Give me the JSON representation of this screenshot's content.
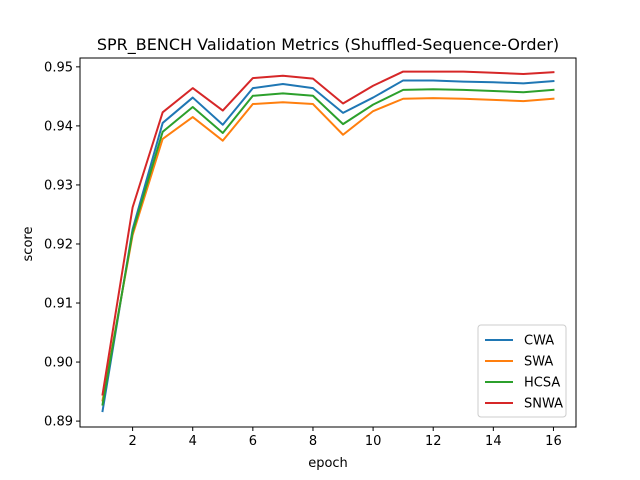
{
  "chart_data": {
    "type": "line",
    "title": "SPR_BENCH Validation Metrics (Shuffled-Sequence-Order)",
    "xlabel": "epoch",
    "ylabel": "score",
    "xlim": [
      0.25,
      16.75
    ],
    "ylim": [
      0.889,
      0.9515
    ],
    "xticks": [
      2,
      4,
      6,
      8,
      10,
      12,
      14,
      16
    ],
    "yticks": [
      0.89,
      0.9,
      0.91,
      0.92,
      0.93,
      0.94,
      0.95
    ],
    "ytick_labels": [
      "0.89",
      "0.90",
      "0.91",
      "0.92",
      "0.93",
      "0.94",
      "0.95"
    ],
    "grid": false,
    "legend_position": "lower-right",
    "x": [
      1,
      2,
      3,
      4,
      5,
      6,
      7,
      8,
      9,
      10,
      11,
      12,
      13,
      14,
      15,
      16
    ],
    "series": [
      {
        "name": "CWA",
        "color": "#1f77b4",
        "values": [
          0.8917,
          0.9225,
          0.9405,
          0.9448,
          0.9402,
          0.9464,
          0.9471,
          0.9464,
          0.9422,
          0.9448,
          0.9477,
          0.9477,
          0.9475,
          0.9474,
          0.9472,
          0.9476
        ]
      },
      {
        "name": "SWA",
        "color": "#ff7f0e",
        "values": [
          0.8935,
          0.9215,
          0.9378,
          0.9415,
          0.9375,
          0.9437,
          0.944,
          0.9437,
          0.9385,
          0.9425,
          0.9446,
          0.9447,
          0.9446,
          0.9444,
          0.9442,
          0.9446
        ]
      },
      {
        "name": "HCSA",
        "color": "#2ca02c",
        "values": [
          0.8928,
          0.922,
          0.939,
          0.9432,
          0.9388,
          0.9451,
          0.9455,
          0.9451,
          0.9403,
          0.9436,
          0.9461,
          0.9462,
          0.9461,
          0.9459,
          0.9457,
          0.9461
        ]
      },
      {
        "name": "SNWA",
        "color": "#d62728",
        "values": [
          0.8945,
          0.9262,
          0.9423,
          0.9464,
          0.9426,
          0.9481,
          0.9485,
          0.948,
          0.9438,
          0.9468,
          0.9492,
          0.9492,
          0.9492,
          0.949,
          0.9488,
          0.9491
        ]
      }
    ]
  }
}
